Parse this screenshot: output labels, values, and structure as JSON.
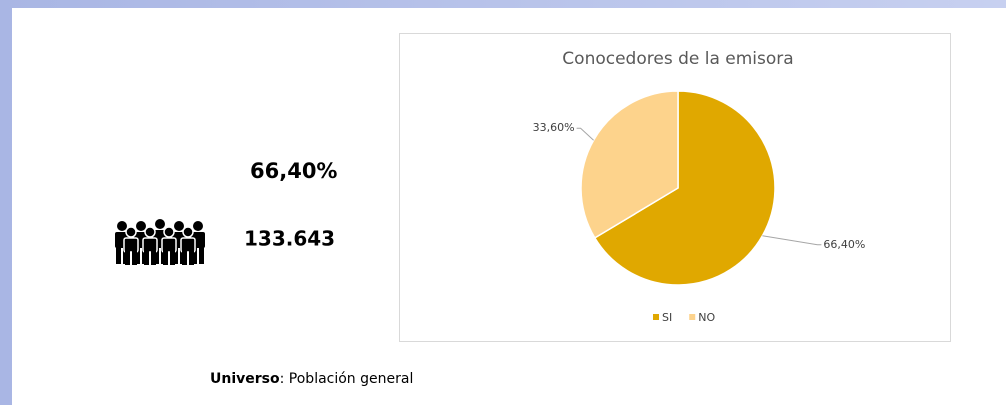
{
  "stats": {
    "percent": "66,40%",
    "count": "133.643"
  },
  "footer": {
    "label": "Universo",
    "text": ": Población general"
  },
  "chart_data": {
    "type": "pie",
    "title": "Conocedores de la emisora",
    "categories": [
      "SI",
      "NO"
    ],
    "values": [
      66.4,
      33.6
    ],
    "value_labels": [
      "66,40%",
      "33,60%"
    ],
    "colors": [
      "#e0a800",
      "#fdd38c"
    ],
    "legend": "bottom"
  }
}
